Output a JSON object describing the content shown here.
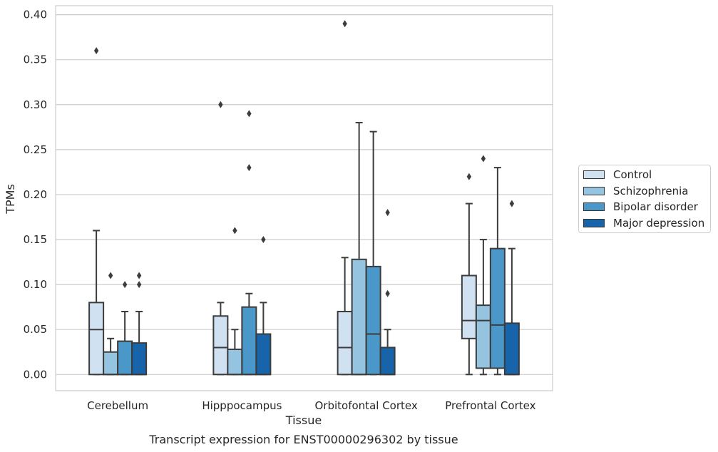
{
  "chart_data": {
    "type": "box",
    "title": "Transcript expression for ENST00000296302 by tissue",
    "xlabel": "Tissue",
    "ylabel": "TPMs",
    "ylim": [
      -0.018,
      0.41
    ],
    "yticks": [
      0.0,
      0.05,
      0.1,
      0.15,
      0.2,
      0.25,
      0.3,
      0.35,
      0.4
    ],
    "ytick_labels": [
      "0.00",
      "0.05",
      "0.10",
      "0.15",
      "0.20",
      "0.25",
      "0.30",
      "0.35",
      "0.40"
    ],
    "grid": "horizontal",
    "legend_position": "right",
    "categories": [
      "Cerebellum",
      "Hipppocampus",
      "Orbitofontal Cortex",
      "Prefrontal Cortex"
    ],
    "series": [
      {
        "name": "Control",
        "color": "#d0e1f2",
        "boxes": [
          {
            "whislo": 0.0,
            "q1": 0.0,
            "med": 0.05,
            "q3": 0.08,
            "whishi": 0.16,
            "fliers": [
              0.36
            ]
          },
          {
            "whislo": 0.0,
            "q1": 0.0,
            "med": 0.03,
            "q3": 0.065,
            "whishi": 0.08,
            "fliers": [
              0.3
            ]
          },
          {
            "whislo": 0.0,
            "q1": 0.0,
            "med": 0.03,
            "q3": 0.07,
            "whishi": 0.13,
            "fliers": [
              0.39
            ]
          },
          {
            "whislo": 0.0,
            "q1": 0.04,
            "med": 0.06,
            "q3": 0.11,
            "whishi": 0.19,
            "fliers": [
              0.22
            ]
          }
        ]
      },
      {
        "name": "Schizophrenia",
        "color": "#94c4df",
        "boxes": [
          {
            "whislo": 0.0,
            "q1": 0.0,
            "med": 0.0,
            "q3": 0.025,
            "whishi": 0.04,
            "fliers": [
              0.11
            ]
          },
          {
            "whislo": 0.0,
            "q1": 0.0,
            "med": 0.0,
            "q3": 0.028,
            "whishi": 0.05,
            "fliers": [
              0.16
            ]
          },
          {
            "whislo": 0.0,
            "q1": 0.0,
            "med": 0.0,
            "q3": 0.128,
            "whishi": 0.28,
            "fliers": []
          },
          {
            "whislo": 0.0,
            "q1": 0.007,
            "med": 0.06,
            "q3": 0.077,
            "whishi": 0.15,
            "fliers": [
              0.24
            ]
          }
        ]
      },
      {
        "name": "Bipolar disorder",
        "color": "#4a98c9",
        "boxes": [
          {
            "whislo": 0.0,
            "q1": 0.0,
            "med": 0.0,
            "q3": 0.037,
            "whishi": 0.07,
            "fliers": [
              0.1
            ]
          },
          {
            "whislo": 0.0,
            "q1": 0.0,
            "med": 0.0,
            "q3": 0.075,
            "whishi": 0.09,
            "fliers": [
              0.23,
              0.29
            ]
          },
          {
            "whislo": 0.0,
            "q1": 0.0,
            "med": 0.045,
            "q3": 0.12,
            "whishi": 0.27,
            "fliers": []
          },
          {
            "whislo": 0.0,
            "q1": 0.007,
            "med": 0.055,
            "q3": 0.14,
            "whishi": 0.23,
            "fliers": []
          }
        ]
      },
      {
        "name": "Major depression",
        "color": "#1764ab",
        "boxes": [
          {
            "whislo": 0.0,
            "q1": 0.0,
            "med": 0.0,
            "q3": 0.035,
            "whishi": 0.07,
            "fliers": [
              0.1,
              0.11
            ]
          },
          {
            "whislo": 0.0,
            "q1": 0.0,
            "med": 0.0,
            "q3": 0.045,
            "whishi": 0.08,
            "fliers": [
              0.15
            ]
          },
          {
            "whislo": 0.0,
            "q1": 0.0,
            "med": 0.0,
            "q3": 0.03,
            "whishi": 0.05,
            "fliers": [
              0.09,
              0.18
            ]
          },
          {
            "whislo": 0.0,
            "q1": 0.0,
            "med": 0.0,
            "q3": 0.057,
            "whishi": 0.14,
            "fliers": [
              0.19
            ]
          }
        ]
      }
    ]
  }
}
